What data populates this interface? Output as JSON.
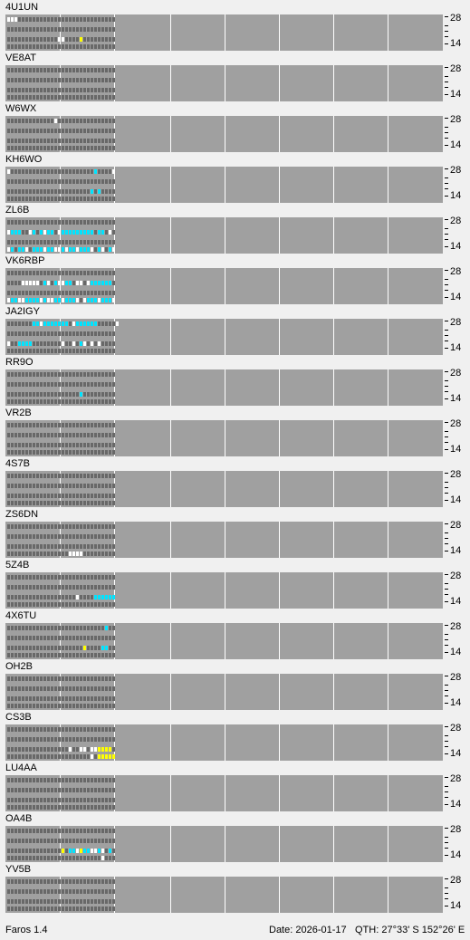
{
  "app": {
    "name_version": "Faros 1.4"
  },
  "status": {
    "date": "Date: 2026-01-17",
    "qth": "QTH: 27°33' S   152°26' E"
  },
  "axis": {
    "top_band": "28",
    "bottom_band": "14"
  },
  "colors": {
    "panel": "#a0a0a0",
    "empty_cell": "#686868",
    "white": "#ffffff",
    "cyan": "#00e4ff",
    "yellow": "#ffff00",
    "grid_line": "#ffffff"
  },
  "legend_note": "",
  "beacons": [
    {
      "call": "4U1UN",
      "lines": [
        [
          [
            0,
            "w"
          ],
          [
            1,
            "w"
          ],
          [
            2,
            "w"
          ]
        ],
        [],
        [
          [
            14,
            "w"
          ],
          [
            15,
            "w"
          ],
          [
            20,
            "y"
          ]
        ],
        []
      ]
    },
    {
      "call": "VE8AT",
      "lines": [
        [],
        [],
        [],
        []
      ]
    },
    {
      "call": "W6WX",
      "lines": [
        [
          [
            13,
            "w"
          ]
        ],
        [],
        [],
        []
      ]
    },
    {
      "call": "KH6WO",
      "lines": [
        [
          [
            0,
            "w"
          ],
          [
            24,
            "c"
          ],
          [
            29,
            "w"
          ]
        ],
        [],
        [
          [
            23,
            "c"
          ],
          [
            25,
            "c"
          ]
        ],
        []
      ]
    },
    {
      "call": "ZL6B",
      "lines": [
        [],
        [
          [
            0,
            "w"
          ],
          [
            1,
            "c"
          ],
          [
            2,
            "c"
          ],
          [
            3,
            "c"
          ],
          [
            6,
            "w"
          ],
          [
            7,
            "c"
          ],
          [
            9,
            "c"
          ],
          [
            10,
            "w"
          ],
          [
            11,
            "c"
          ],
          [
            12,
            "c"
          ],
          [
            14,
            "w"
          ],
          [
            15,
            "c"
          ],
          [
            16,
            "c"
          ],
          [
            17,
            "c"
          ],
          [
            18,
            "c"
          ],
          [
            19,
            "c"
          ],
          [
            20,
            "c"
          ],
          [
            21,
            "c"
          ],
          [
            22,
            "c"
          ],
          [
            23,
            "c"
          ],
          [
            25,
            "c"
          ],
          [
            26,
            "c"
          ],
          [
            28,
            "w"
          ]
        ],
        [],
        [
          [
            0,
            "w"
          ],
          [
            1,
            "c"
          ],
          [
            3,
            "c"
          ],
          [
            4,
            "c"
          ],
          [
            5,
            "w"
          ],
          [
            7,
            "c"
          ],
          [
            8,
            "c"
          ],
          [
            9,
            "c"
          ],
          [
            10,
            "w"
          ],
          [
            11,
            "c"
          ],
          [
            12,
            "c"
          ],
          [
            13,
            "w"
          ],
          [
            14,
            "w"
          ],
          [
            15,
            "c"
          ],
          [
            16,
            "w"
          ],
          [
            17,
            "c"
          ],
          [
            18,
            "c"
          ],
          [
            19,
            "w"
          ],
          [
            20,
            "c"
          ],
          [
            21,
            "c"
          ],
          [
            22,
            "c"
          ],
          [
            23,
            "w"
          ],
          [
            25,
            "c"
          ],
          [
            26,
            "w"
          ],
          [
            28,
            "c"
          ],
          [
            29,
            "w"
          ]
        ]
      ]
    },
    {
      "call": "VK6RBP",
      "lines": [
        [],
        [
          [
            4,
            "w"
          ],
          [
            5,
            "w"
          ],
          [
            6,
            "w"
          ],
          [
            7,
            "w"
          ],
          [
            8,
            "w"
          ],
          [
            10,
            "c"
          ],
          [
            11,
            "w"
          ],
          [
            13,
            "c"
          ],
          [
            14,
            "w"
          ],
          [
            15,
            "w"
          ],
          [
            16,
            "c"
          ],
          [
            17,
            "c"
          ],
          [
            19,
            "w"
          ],
          [
            20,
            "w"
          ],
          [
            22,
            "w"
          ],
          [
            23,
            "c"
          ],
          [
            24,
            "c"
          ],
          [
            25,
            "c"
          ],
          [
            26,
            "c"
          ],
          [
            27,
            "c"
          ],
          [
            28,
            "c"
          ]
        ],
        [],
        [
          [
            0,
            "w"
          ],
          [
            1,
            "c"
          ],
          [
            2,
            "c"
          ],
          [
            3,
            "w"
          ],
          [
            4,
            "w"
          ],
          [
            5,
            "c"
          ],
          [
            6,
            "c"
          ],
          [
            7,
            "c"
          ],
          [
            8,
            "c"
          ],
          [
            9,
            "w"
          ],
          [
            10,
            "c"
          ],
          [
            11,
            "w"
          ],
          [
            12,
            "w"
          ],
          [
            13,
            "c"
          ],
          [
            14,
            "c"
          ],
          [
            15,
            "w"
          ],
          [
            16,
            "c"
          ],
          [
            17,
            "c"
          ],
          [
            18,
            "c"
          ],
          [
            19,
            "w"
          ],
          [
            21,
            "w"
          ],
          [
            22,
            "c"
          ],
          [
            23,
            "c"
          ],
          [
            24,
            "c"
          ],
          [
            25,
            "w"
          ],
          [
            26,
            "c"
          ],
          [
            27,
            "c"
          ],
          [
            28,
            "c"
          ],
          [
            29,
            "w"
          ]
        ]
      ]
    },
    {
      "call": "JA2IGY",
      "lines": [
        [
          [
            7,
            "c"
          ],
          [
            8,
            "c"
          ],
          [
            9,
            "w"
          ],
          [
            10,
            "c"
          ],
          [
            11,
            "c"
          ],
          [
            12,
            "c"
          ],
          [
            13,
            "c"
          ],
          [
            14,
            "c"
          ],
          [
            15,
            "c"
          ],
          [
            16,
            "c"
          ],
          [
            18,
            "w"
          ],
          [
            19,
            "c"
          ],
          [
            20,
            "c"
          ],
          [
            21,
            "c"
          ],
          [
            22,
            "c"
          ],
          [
            23,
            "c"
          ],
          [
            24,
            "c"
          ],
          [
            30,
            "w"
          ]
        ],
        [],
        [
          [
            0,
            "w"
          ],
          [
            3,
            "c"
          ],
          [
            4,
            "c"
          ],
          [
            5,
            "c"
          ],
          [
            6,
            "c"
          ],
          [
            15,
            "w"
          ],
          [
            18,
            "w"
          ],
          [
            20,
            "c"
          ],
          [
            21,
            "w"
          ],
          [
            23,
            "w"
          ],
          [
            25,
            "w"
          ]
        ],
        []
      ]
    },
    {
      "call": "RR9O",
      "lines": [
        [],
        [],
        [
          [
            20,
            "c"
          ]
        ],
        []
      ]
    },
    {
      "call": "VR2B",
      "lines": [
        [],
        [],
        [],
        []
      ]
    },
    {
      "call": "4S7B",
      "lines": [
        [],
        [],
        [],
        []
      ]
    },
    {
      "call": "ZS6DN",
      "lines": [
        [],
        [],
        [],
        [
          [
            17,
            "w"
          ],
          [
            18,
            "w"
          ],
          [
            19,
            "w"
          ],
          [
            20,
            "w"
          ]
        ]
      ]
    },
    {
      "call": "5Z4B",
      "lines": [
        [],
        [],
        [
          [
            19,
            "w"
          ],
          [
            24,
            "c"
          ],
          [
            25,
            "c"
          ],
          [
            26,
            "c"
          ],
          [
            27,
            "c"
          ],
          [
            28,
            "c"
          ],
          [
            29,
            "c"
          ]
        ],
        []
      ]
    },
    {
      "call": "4X6TU",
      "lines": [
        [
          [
            27,
            "c"
          ]
        ],
        [],
        [
          [
            21,
            "y"
          ],
          [
            26,
            "c"
          ],
          [
            27,
            "c"
          ]
        ],
        []
      ]
    },
    {
      "call": "OH2B",
      "lines": [
        [],
        [],
        [],
        []
      ]
    },
    {
      "call": "CS3B",
      "lines": [
        [],
        [],
        [
          [
            17,
            "w"
          ],
          [
            20,
            "w"
          ],
          [
            21,
            "w"
          ],
          [
            23,
            "w"
          ],
          [
            24,
            "w"
          ],
          [
            25,
            "y"
          ],
          [
            26,
            "y"
          ],
          [
            27,
            "y"
          ],
          [
            28,
            "y"
          ]
        ],
        [
          [
            23,
            "w"
          ],
          [
            25,
            "y"
          ],
          [
            26,
            "y"
          ],
          [
            27,
            "y"
          ],
          [
            28,
            "y"
          ],
          [
            29,
            "y"
          ]
        ]
      ]
    },
    {
      "call": "LU4AA",
      "lines": [
        [],
        [],
        [],
        []
      ]
    },
    {
      "call": "OA4B",
      "lines": [
        [],
        [],
        [
          [
            15,
            "y"
          ],
          [
            17,
            "c"
          ],
          [
            18,
            "c"
          ],
          [
            19,
            "w"
          ],
          [
            20,
            "y"
          ],
          [
            21,
            "c"
          ],
          [
            22,
            "c"
          ],
          [
            23,
            "w"
          ],
          [
            24,
            "w"
          ],
          [
            25,
            "c"
          ],
          [
            26,
            "w"
          ],
          [
            28,
            "c"
          ]
        ],
        [
          [
            26,
            "w"
          ]
        ]
      ]
    },
    {
      "call": "YV5B",
      "lines": [
        [],
        [],
        [],
        []
      ]
    }
  ]
}
